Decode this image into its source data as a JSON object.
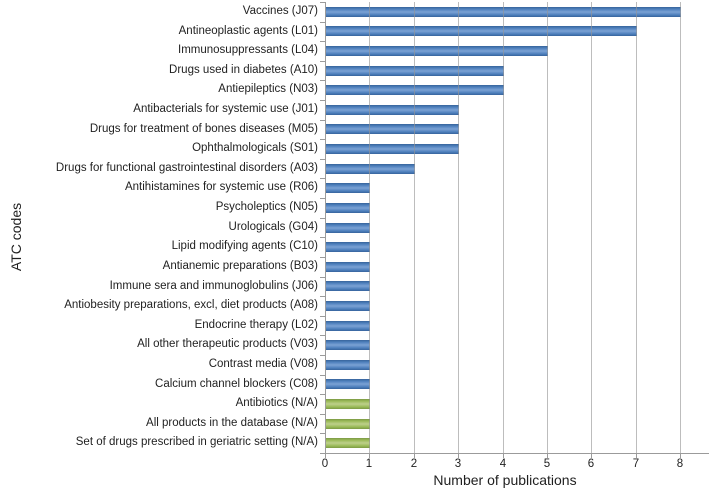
{
  "chart_data": {
    "type": "bar",
    "orientation": "horizontal",
    "title": "",
    "xlabel": "Number of publications",
    "ylabel": "ATC codes",
    "xlim": [
      0,
      8
    ],
    "xticks": [
      0,
      1,
      2,
      3,
      4,
      5,
      6,
      7,
      8
    ],
    "grid": true,
    "legend": "none",
    "categories": [
      "Vaccines (J07)",
      "Antineoplastic agents (L01)",
      "Immunosuppressants (L04)",
      "Drugs used in diabetes (A10)",
      "Antiepileptics (N03)",
      "Antibacterials for systemic use (J01)",
      "Drugs for treatment of bones diseases (M05)",
      "Ophthalmologicals (S01)",
      "Drugs for functional gastrointestinal disorders (A03)",
      "Antihistamines for systemic use (R06)",
      "Psycholeptics (N05)",
      "Urologicals (G04)",
      "Lipid modifying agents (C10)",
      "Antianemic preparations (B03)",
      "Immune sera and immunoglobulins (J06)",
      "Antiobesity preparations, excl, diet products (A08)",
      "Endocrine therapy (L02)",
      "All other therapeutic products (V03)",
      "Contrast media (V08)",
      "Calcium channel blockers (C08)",
      "Antibiotics (N/A)",
      "All products in the database (N/A)",
      "Set of drugs prescribed in geriatric setting (N/A)"
    ],
    "values": [
      8,
      7,
      5,
      4,
      4,
      3,
      3,
      3,
      2,
      1,
      1,
      1,
      1,
      1,
      1,
      1,
      1,
      1,
      1,
      1,
      1,
      1,
      1
    ],
    "bar_colors": [
      "blue",
      "blue",
      "blue",
      "blue",
      "blue",
      "blue",
      "blue",
      "blue",
      "blue",
      "blue",
      "blue",
      "blue",
      "blue",
      "blue",
      "blue",
      "blue",
      "blue",
      "blue",
      "blue",
      "blue",
      "green",
      "green",
      "green"
    ],
    "palette": {
      "blue": [
        "#36639c",
        "#4f81bd",
        "#7ba2d4"
      ],
      "green": [
        "#7c9a44",
        "#9bbb59",
        "#bdd08a"
      ]
    }
  }
}
